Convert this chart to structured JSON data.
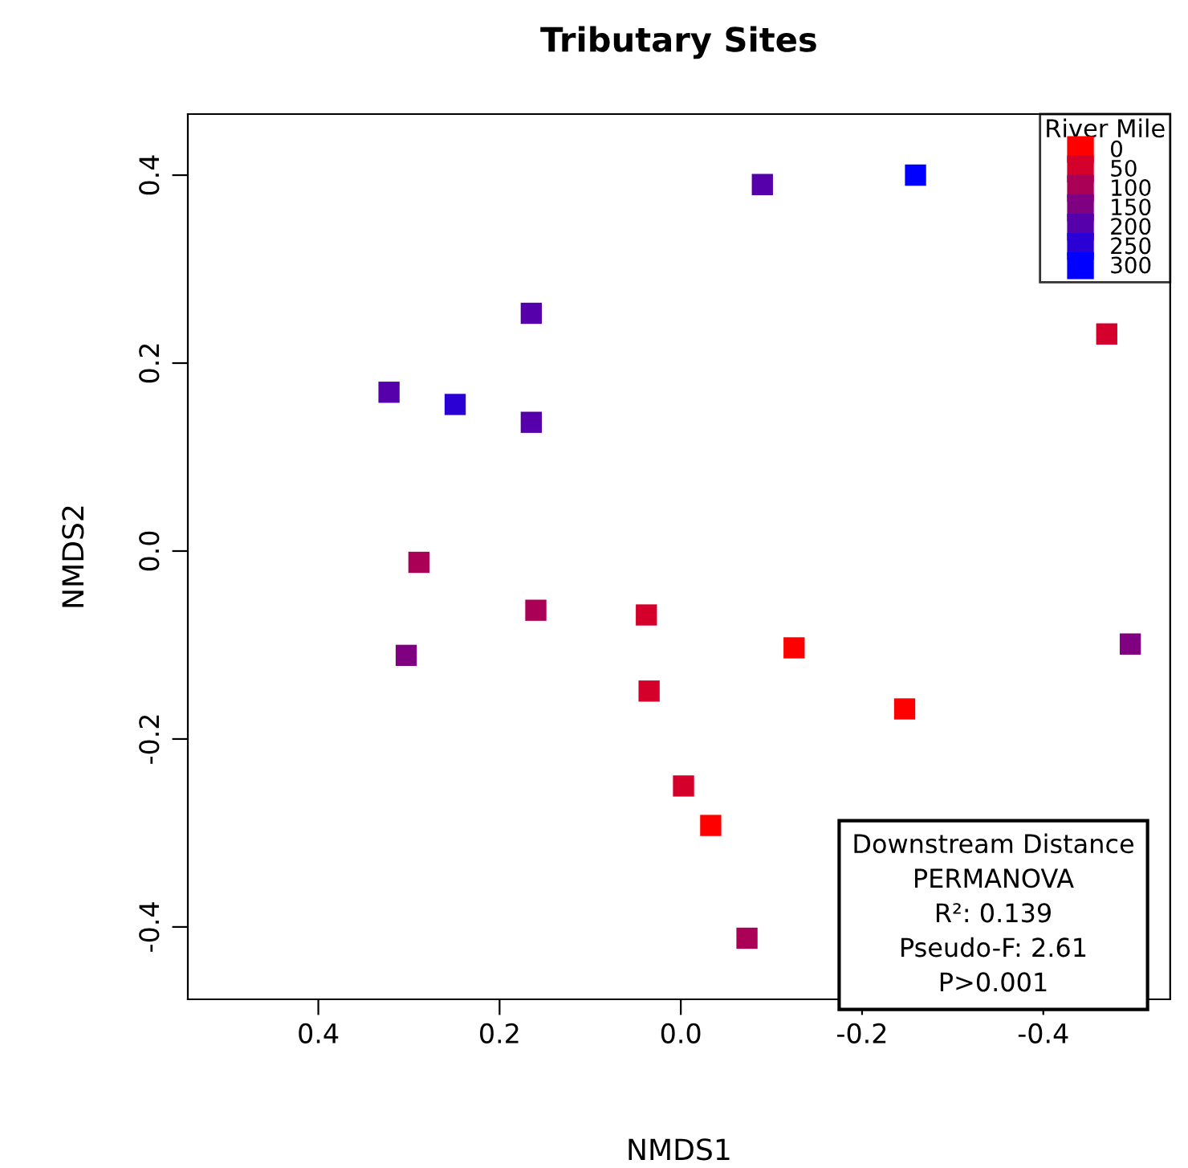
{
  "chart_data": {
    "type": "scatter",
    "title": "Tributary Sites",
    "xlabel": "NMDS1",
    "ylabel": "NMDS2",
    "legend_title": "River Mile",
    "xlim": [
      0.544,
      -0.54
    ],
    "xticks": [
      0.4,
      0.2,
      {
        "value": 0.0,
        "label": "0.0"
      },
      -0.2,
      -0.4
    ],
    "ylim": [
      -0.477,
      0.465
    ],
    "yticks": [
      -0.4,
      -0.2,
      {
        "value": 0.0,
        "label": "0.0"
      },
      0.2,
      0.4
    ],
    "grid": false,
    "legend": "top right",
    "marker": "square",
    "series": [
      {
        "name": "0",
        "color": "#ff0000",
        "x": [
          -0.125,
          -0.247,
          -0.033
        ],
        "values": [
          -0.103,
          -0.168,
          -0.292
        ]
      },
      {
        "name": "50",
        "color": "#d4002b",
        "x": [
          -0.47,
          0.038,
          0.035,
          -0.003
        ],
        "values": [
          0.231,
          -0.068,
          -0.149,
          -0.25
        ]
      },
      {
        "name": "100",
        "color": "#aa0055",
        "x": [
          -0.073,
          0.289,
          0.16
        ],
        "values": [
          -0.412,
          -0.012,
          -0.063
        ]
      },
      {
        "name": "150",
        "color": "#7f0080",
        "x": [
          0.303,
          -0.496
        ],
        "values": [
          -0.111,
          -0.099
        ]
      },
      {
        "name": "200",
        "color": "#5500aa",
        "x": [
          -0.09,
          0.165,
          0.165,
          0.322
        ],
        "values": [
          0.39,
          0.253,
          0.137,
          0.169
        ]
      },
      {
        "name": "250",
        "color": "#2a00d5",
        "x": [
          0.249
        ],
        "values": [
          0.156
        ]
      },
      {
        "name": "300",
        "color": "#0000ff",
        "x": [
          -0.259
        ],
        "values": [
          0.4
        ]
      }
    ],
    "annotations": [
      "Downstream Distance",
      "PERMANOVA",
      "R²: 0.139",
      "Pseudo-F: 2.61",
      "P>0.001"
    ]
  }
}
